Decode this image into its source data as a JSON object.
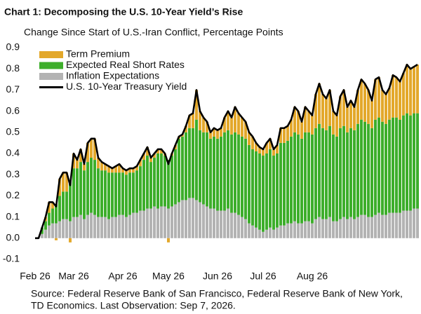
{
  "chart_data": {
    "type": "bar",
    "stacked": true,
    "title": "Chart 1: Decomposing the U.S. 10-Year Yield’s Rise",
    "subtitle": "Change Since Start of U.S.-Iran Conflict, Percentage Points",
    "notes": [
      "Source: Federal Reserve Bank of San Francisco, Federal Reserve Bank of New York,",
      "TD Economics. Last Observation: Sep 7, 2026."
    ],
    "legend": "upper left",
    "ylim": [
      -0.1,
      0.9
    ],
    "yticks": [
      -0.1,
      {
        "value": 0,
        "label": "0.0"
      },
      0.1,
      0.2,
      0.3,
      0.4,
      0.5,
      0.6,
      0.7,
      0.8,
      0.9
    ],
    "categories": [
      "Feb 26",
      null,
      null,
      null,
      null,
      null,
      null,
      null,
      null,
      null,
      null,
      "Mar 26",
      null,
      null,
      null,
      null,
      null,
      null,
      null,
      null,
      null,
      null,
      null,
      null,
      null,
      "Apr 26",
      null,
      null,
      null,
      null,
      null,
      null,
      null,
      null,
      null,
      null,
      null,
      null,
      "May 26",
      null,
      null,
      null,
      null,
      null,
      null,
      null,
      null,
      null,
      null,
      null,
      null,
      null,
      "Jun 26",
      null,
      null,
      null,
      null,
      null,
      null,
      null,
      null,
      null,
      null,
      null,
      null,
      "Jul 26",
      null,
      null,
      null,
      null,
      null,
      null,
      null,
      null,
      null,
      null,
      null,
      null,
      null,
      "Aug 26",
      null,
      null,
      null,
      null,
      null,
      null,
      null,
      null,
      null,
      null,
      null,
      null,
      null,
      null,
      null,
      null,
      null,
      null,
      null,
      null,
      null,
      null,
      null,
      null,
      null,
      null,
      null,
      null,
      null,
      null
    ],
    "series": [
      {
        "name": "Term Premium",
        "type": "bar",
        "color": "#E3A82B",
        "values": [
          0,
          0,
          0,
          0.02,
          0.05,
          0.03,
          -0.01,
          0.08,
          0.09,
          0.09,
          -0.02,
          0.07,
          0.04,
          0.06,
          0.03,
          0.09,
          0.09,
          0.1,
          0.05,
          0.04,
          0.03,
          0.03,
          0.02,
          0.03,
          0.04,
          0.02,
          0.02,
          0.02,
          0.02,
          0.02,
          0.03,
          0.03,
          0.04,
          0.02,
          0.02,
          0.02,
          0.02,
          0.01,
          -0.02,
          0.01,
          0.02,
          0.01,
          0.01,
          0.03,
          0.06,
          0.07,
          0.14,
          0.09,
          0.07,
          0.05,
          0.03,
          0.04,
          0.04,
          0.04,
          0.07,
          0.09,
          0.08,
          0.12,
          0.1,
          0.09,
          0.08,
          0.06,
          0.06,
          0.04,
          0.03,
          0.03,
          0.05,
          0.05,
          0.03,
          0.04,
          0.07,
          0.07,
          0.07,
          0.08,
          0.12,
          0.11,
          0.08,
          0.12,
          0.1,
          0.09,
          0.16,
          0.19,
          0.16,
          0.15,
          0.17,
          0.11,
          0.1,
          0.15,
          0.17,
          0.12,
          0.13,
          0.11,
          0.16,
          0.19,
          0.18,
          0.16,
          0.13,
          0.19,
          0.19,
          0.15,
          0.14,
          0.15,
          0.2,
          0.19,
          0.18,
          0.2,
          0.23,
          0.22,
          0.22,
          0.23
        ]
      },
      {
        "name": "Expected Real Short Rates",
        "type": "bar",
        "color": "#3DAE2B",
        "values": [
          0,
          0,
          0.03,
          0.04,
          0.06,
          0.07,
          0.09,
          0.12,
          0.13,
          0.13,
          0.19,
          0.23,
          0.23,
          0.25,
          0.23,
          0.25,
          0.26,
          0.26,
          0.23,
          0.22,
          0.22,
          0.22,
          0.21,
          0.21,
          0.2,
          0.2,
          0.2,
          0.2,
          0.19,
          0.2,
          0.21,
          0.24,
          0.25,
          0.22,
          0.23,
          0.26,
          0.25,
          0.24,
          0.23,
          0.24,
          0.26,
          0.3,
          0.3,
          0.32,
          0.33,
          0.33,
          0.38,
          0.34,
          0.34,
          0.35,
          0.33,
          0.34,
          0.34,
          0.35,
          0.37,
          0.37,
          0.37,
          0.38,
          0.38,
          0.38,
          0.38,
          0.37,
          0.36,
          0.36,
          0.36,
          0.36,
          0.36,
          0.37,
          0.35,
          0.35,
          0.39,
          0.39,
          0.39,
          0.41,
          0.42,
          0.42,
          0.4,
          0.42,
          0.42,
          0.42,
          0.43,
          0.44,
          0.43,
          0.42,
          0.43,
          0.41,
          0.4,
          0.43,
          0.43,
          0.41,
          0.42,
          0.42,
          0.44,
          0.45,
          0.44,
          0.44,
          0.42,
          0.45,
          0.45,
          0.44,
          0.43,
          0.44,
          0.45,
          0.45,
          0.44,
          0.45,
          0.46,
          0.45,
          0.45,
          0.45
        ]
      },
      {
        "name": "Inflation Expectations",
        "type": "bar",
        "color": "#B3B3B3",
        "values": [
          0,
          0,
          0.02,
          0.04,
          0.06,
          0.07,
          0.07,
          0.08,
          0.09,
          0.09,
          0.08,
          0.1,
          0.1,
          0.11,
          0.09,
          0.11,
          0.12,
          0.11,
          0.1,
          0.1,
          0.1,
          0.09,
          0.1,
          0.1,
          0.11,
          0.11,
          0.1,
          0.11,
          0.12,
          0.12,
          0.13,
          0.13,
          0.14,
          0.14,
          0.15,
          0.14,
          0.15,
          0.15,
          0.14,
          0.15,
          0.16,
          0.17,
          0.18,
          0.18,
          0.19,
          0.19,
          0.18,
          0.17,
          0.16,
          0.15,
          0.14,
          0.14,
          0.13,
          0.13,
          0.13,
          0.14,
          0.12,
          0.12,
          0.11,
          0.1,
          0.09,
          0.07,
          0.06,
          0.05,
          0.04,
          0.03,
          0.04,
          0.05,
          0.04,
          0.05,
          0.06,
          0.06,
          0.07,
          0.07,
          0.08,
          0.07,
          0.07,
          0.08,
          0.08,
          0.07,
          0.09,
          0.1,
          0.09,
          0.09,
          0.1,
          0.08,
          0.08,
          0.09,
          0.1,
          0.09,
          0.1,
          0.09,
          0.1,
          0.11,
          0.11,
          0.1,
          0.1,
          0.11,
          0.12,
          0.11,
          0.11,
          0.12,
          0.12,
          0.12,
          0.12,
          0.13,
          0.13,
          0.13,
          0.14,
          0.14
        ]
      },
      {
        "name": "U.S. 10-Year Treasury Yield",
        "type": "line",
        "color": "#000000",
        "values": [
          0,
          0,
          0.05,
          0.1,
          0.17,
          0.17,
          0.15,
          0.28,
          0.31,
          0.31,
          0.25,
          0.4,
          0.37,
          0.42,
          0.35,
          0.45,
          0.47,
          0.47,
          0.38,
          0.36,
          0.35,
          0.34,
          0.33,
          0.34,
          0.35,
          0.33,
          0.32,
          0.33,
          0.33,
          0.34,
          0.37,
          0.4,
          0.43,
          0.38,
          0.4,
          0.42,
          0.42,
          0.4,
          0.35,
          0.4,
          0.44,
          0.48,
          0.49,
          0.53,
          0.58,
          0.59,
          0.7,
          0.6,
          0.57,
          0.55,
          0.5,
          0.52,
          0.51,
          0.52,
          0.57,
          0.6,
          0.57,
          0.62,
          0.59,
          0.57,
          0.55,
          0.5,
          0.48,
          0.45,
          0.43,
          0.42,
          0.45,
          0.47,
          0.42,
          0.44,
          0.52,
          0.52,
          0.53,
          0.56,
          0.62,
          0.6,
          0.55,
          0.62,
          0.6,
          0.58,
          0.68,
          0.73,
          0.68,
          0.66,
          0.7,
          0.6,
          0.58,
          0.67,
          0.7,
          0.62,
          0.65,
          0.62,
          0.7,
          0.75,
          0.73,
          0.7,
          0.65,
          0.75,
          0.76,
          0.7,
          0.68,
          0.71,
          0.77,
          0.76,
          0.74,
          0.78,
          0.82,
          0.8,
          0.81,
          0.82
        ]
      }
    ]
  }
}
